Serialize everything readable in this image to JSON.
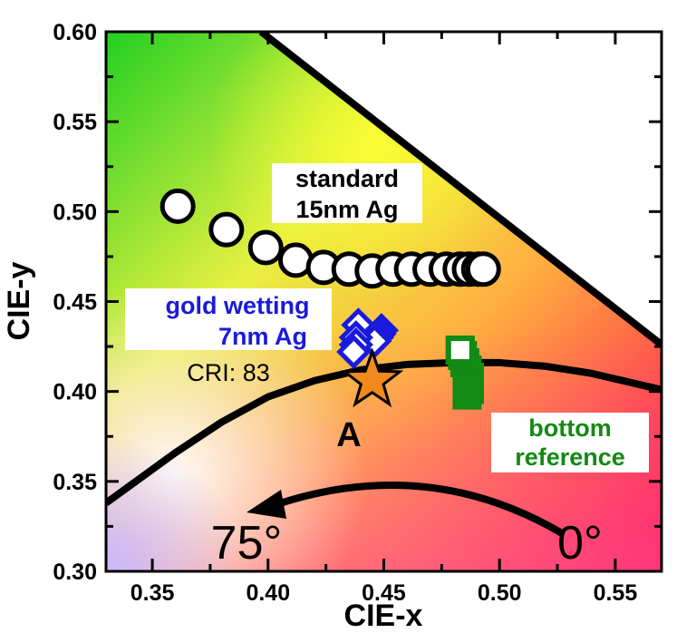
{
  "chart_data": {
    "type": "scatter",
    "xlabel": "CIE-x",
    "ylabel": "CIE-y",
    "xlim": [
      0.33,
      0.57
    ],
    "ylim": [
      0.3,
      0.6
    ],
    "xticks": [
      "0.35",
      "0.40",
      "0.45",
      "0.50",
      "0.55"
    ],
    "yticks": [
      "0.30",
      "0.35",
      "0.40",
      "0.45",
      "0.50",
      "0.55",
      "0.60"
    ],
    "grid": false,
    "background": "CIE chromaticity colour map",
    "series": [
      {
        "marker": "circle",
        "color": "#ffffff",
        "x": [
          0.361,
          0.382,
          0.399,
          0.412,
          0.424,
          0.435,
          0.445,
          0.454,
          0.462,
          0.47,
          0.477,
          0.483,
          0.487,
          0.491,
          0.493
        ],
        "y": [
          0.503,
          0.49,
          0.48,
          0.473,
          0.469,
          0.468,
          0.467,
          0.468,
          0.468,
          0.468,
          0.468,
          0.468,
          0.468,
          0.468,
          0.468
        ]
      },
      {
        "marker": "diamond",
        "color": "#1a1adc",
        "x": [
          0.449,
          0.448,
          0.447,
          0.446,
          0.439,
          0.438,
          0.438,
          0.437
        ],
        "y": [
          0.434,
          0.432,
          0.43,
          0.428,
          0.437,
          0.43,
          0.426,
          0.422
        ]
      },
      {
        "marker": "square",
        "color": "#138a13",
        "x": [
          0.483,
          0.484,
          0.485,
          0.486,
          0.487,
          0.487,
          0.487,
          0.486
        ],
        "y": [
          0.423,
          0.42,
          0.416,
          0.412,
          0.408,
          0.404,
          0.401,
          0.398
        ]
      },
      {
        "marker": "star",
        "color": "#f08a1c",
        "x": [
          0.445
        ],
        "y": [
          0.406
        ]
      }
    ],
    "lines": {
      "planckian": {
        "x": [
          0.33,
          0.36,
          0.38,
          0.4,
          0.42,
          0.44,
          0.46,
          0.48,
          0.5,
          0.52,
          0.54,
          0.57
        ],
        "y": [
          0.338,
          0.366,
          0.383,
          0.397,
          0.406,
          0.412,
          0.415,
          0.416,
          0.416,
          0.414,
          0.41,
          0.401
        ]
      },
      "boundary": {
        "x": [
          0.397,
          0.57
        ],
        "y": [
          0.6,
          0.426
        ]
      }
    },
    "annotations": {
      "standard_1": "standard",
      "standard_2": "15nm Ag",
      "gold_1": "gold wetting",
      "gold_2": "7nm Ag",
      "cri": "CRI: 83",
      "star_label": "A",
      "bottom_1": "bottom",
      "bottom_2": "reference",
      "angle_end": "75°",
      "angle_start": "0°"
    },
    "colors": {
      "gold_label": "#1a1adc",
      "bottom_label": "#138a13"
    }
  }
}
